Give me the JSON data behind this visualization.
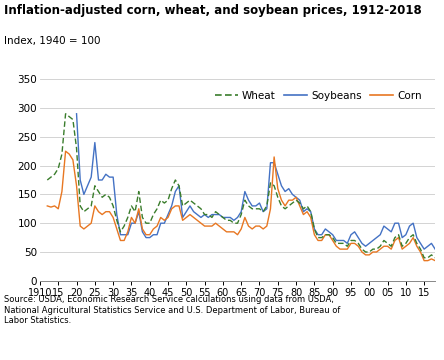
{
  "title": "Inflation-adjusted corn, wheat, and soybean prices, 1912-2018",
  "ylabel": "Index, 1940 = 100",
  "source": "Source: USDA, Economic Research Service calculations using data from USDA,\nNational Agricultural Statistics Service and U.S. Department of Labor, Bureau of\nLabor Statistics.",
  "xlim": [
    1910,
    2018
  ],
  "ylim": [
    0,
    350
  ],
  "yticks": [
    0,
    50,
    100,
    150,
    200,
    250,
    300,
    350
  ],
  "xtick_labels": [
    "1910",
    "15",
    "20",
    "25",
    "30",
    "35",
    "40",
    "45",
    "50",
    "55",
    "60",
    "65",
    "70",
    "75",
    "80",
    "85",
    "90",
    "95",
    "00",
    "05",
    "10",
    "15"
  ],
  "xtick_positions": [
    1910,
    1915,
    1920,
    1925,
    1930,
    1935,
    1940,
    1945,
    1950,
    1955,
    1960,
    1965,
    1970,
    1975,
    1980,
    1985,
    1990,
    1995,
    2000,
    2005,
    2010,
    2015
  ],
  "wheat_color": "#3a7d2c",
  "soybeans_color": "#4472c4",
  "corn_color": "#e87722",
  "years": [
    1912,
    1913,
    1914,
    1915,
    1916,
    1917,
    1918,
    1919,
    1920,
    1921,
    1922,
    1923,
    1924,
    1925,
    1926,
    1927,
    1928,
    1929,
    1930,
    1931,
    1932,
    1933,
    1934,
    1935,
    1936,
    1937,
    1938,
    1939,
    1940,
    1941,
    1942,
    1943,
    1944,
    1945,
    1946,
    1947,
    1948,
    1949,
    1950,
    1951,
    1952,
    1953,
    1954,
    1955,
    1956,
    1957,
    1958,
    1959,
    1960,
    1961,
    1962,
    1963,
    1964,
    1965,
    1966,
    1967,
    1968,
    1969,
    1970,
    1971,
    1972,
    1973,
    1974,
    1975,
    1976,
    1977,
    1978,
    1979,
    1980,
    1981,
    1982,
    1983,
    1984,
    1985,
    1986,
    1987,
    1988,
    1989,
    1990,
    1991,
    1992,
    1993,
    1994,
    1995,
    1996,
    1997,
    1998,
    1999,
    2000,
    2001,
    2002,
    2003,
    2004,
    2005,
    2006,
    2007,
    2008,
    2009,
    2010,
    2011,
    2012,
    2013,
    2014,
    2015,
    2016,
    2017,
    2018
  ],
  "wheat": [
    175,
    180,
    185,
    195,
    220,
    290,
    285,
    280,
    230,
    130,
    120,
    125,
    130,
    165,
    155,
    145,
    150,
    145,
    130,
    105,
    85,
    95,
    110,
    130,
    120,
    155,
    110,
    100,
    100,
    115,
    125,
    140,
    135,
    140,
    160,
    175,
    165,
    130,
    135,
    140,
    135,
    130,
    125,
    115,
    115,
    110,
    120,
    115,
    110,
    105,
    105,
    100,
    100,
    115,
    140,
    130,
    125,
    125,
    125,
    120,
    130,
    170,
    165,
    145,
    130,
    125,
    130,
    135,
    140,
    135,
    125,
    130,
    120,
    90,
    75,
    75,
    80,
    80,
    75,
    65,
    65,
    65,
    60,
    70,
    70,
    65,
    55,
    50,
    50,
    55,
    55,
    60,
    70,
    65,
    60,
    75,
    80,
    60,
    65,
    75,
    80,
    65,
    55,
    40,
    40,
    45,
    40
  ],
  "soybeans": [
    null,
    null,
    null,
    null,
    null,
    null,
    null,
    null,
    290,
    175,
    150,
    165,
    180,
    240,
    175,
    175,
    185,
    180,
    180,
    115,
    80,
    80,
    80,
    100,
    100,
    120,
    85,
    75,
    75,
    80,
    80,
    100,
    100,
    115,
    130,
    155,
    165,
    110,
    120,
    130,
    120,
    115,
    110,
    115,
    110,
    115,
    115,
    115,
    110,
    110,
    110,
    105,
    110,
    120,
    155,
    140,
    130,
    130,
    135,
    120,
    125,
    205,
    205,
    185,
    165,
    155,
    160,
    150,
    145,
    140,
    120,
    125,
    120,
    90,
    80,
    80,
    90,
    85,
    80,
    70,
    70,
    70,
    65,
    80,
    85,
    75,
    65,
    60,
    65,
    70,
    75,
    80,
    95,
    90,
    85,
    100,
    100,
    75,
    80,
    95,
    100,
    75,
    65,
    55,
    60,
    65,
    55
  ],
  "corn": [
    130,
    128,
    130,
    125,
    155,
    225,
    220,
    210,
    165,
    95,
    90,
    95,
    100,
    130,
    120,
    115,
    120,
    120,
    110,
    90,
    70,
    70,
    85,
    110,
    100,
    125,
    90,
    80,
    80,
    90,
    95,
    110,
    105,
    110,
    125,
    130,
    130,
    105,
    110,
    115,
    110,
    105,
    100,
    95,
    95,
    95,
    100,
    95,
    90,
    85,
    85,
    85,
    80,
    90,
    110,
    95,
    90,
    95,
    95,
    90,
    95,
    125,
    215,
    160,
    140,
    130,
    140,
    140,
    145,
    130,
    115,
    120,
    110,
    80,
    70,
    70,
    80,
    80,
    70,
    60,
    55,
    55,
    55,
    65,
    65,
    60,
    50,
    45,
    45,
    50,
    50,
    55,
    60,
    60,
    55,
    70,
    75,
    55,
    60,
    65,
    75,
    60,
    50,
    35,
    35,
    38,
    35
  ]
}
